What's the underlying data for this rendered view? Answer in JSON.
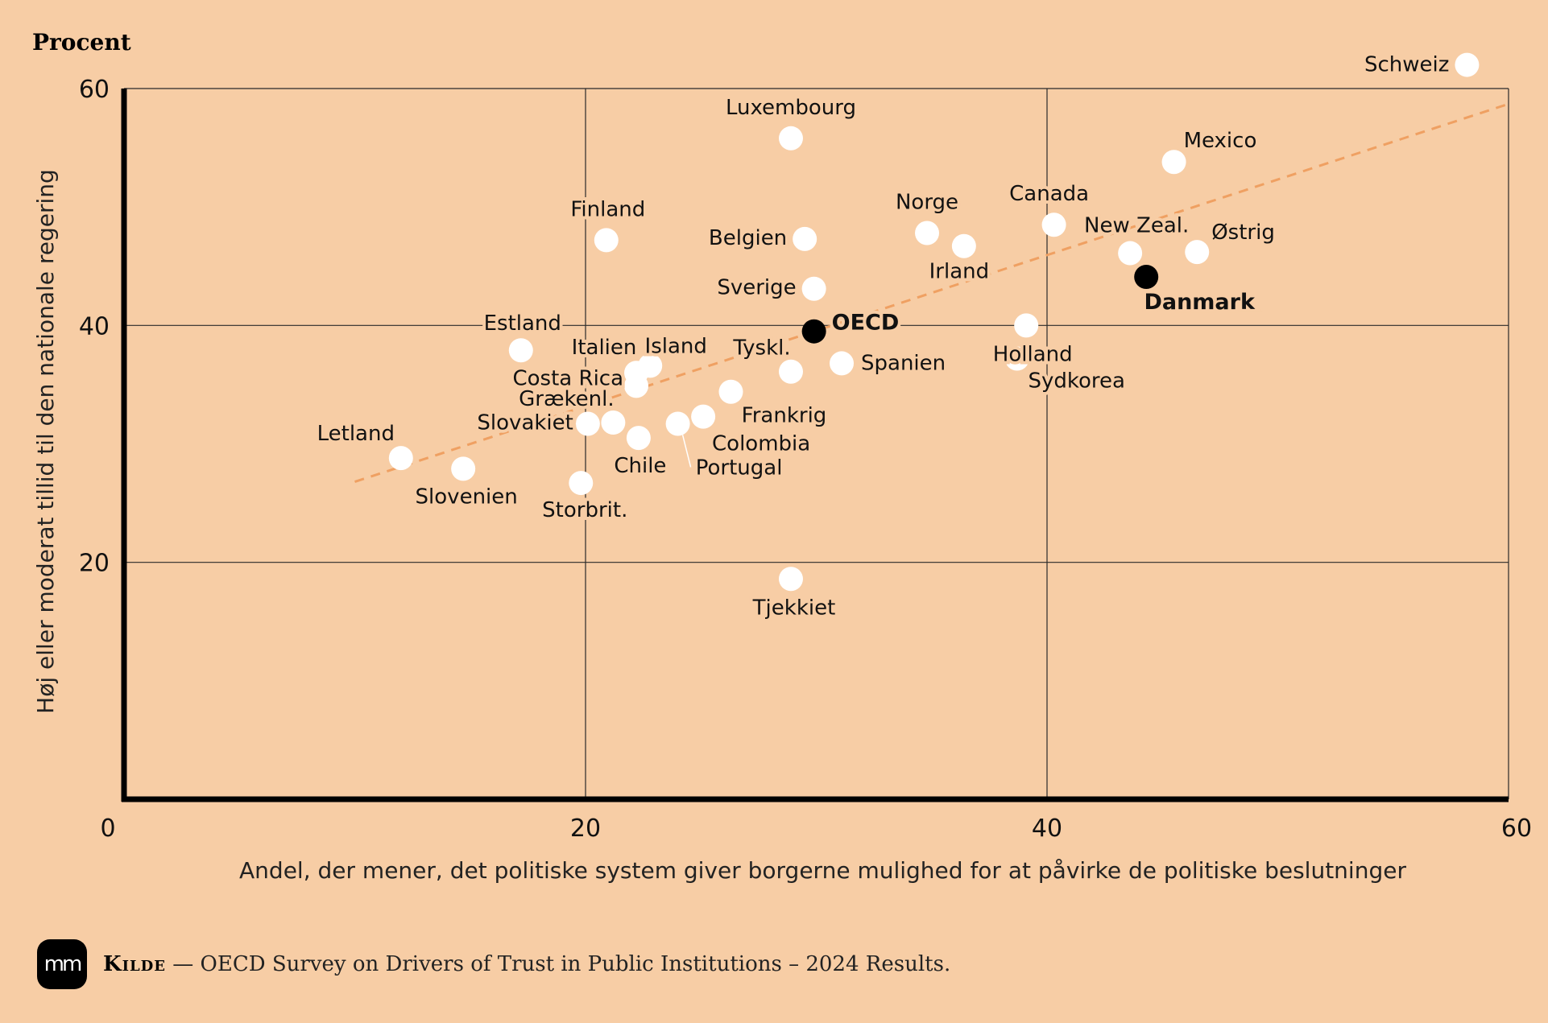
{
  "chart_data": {
    "type": "scatter",
    "unit_label": "Procent",
    "xlabel": "Andel, der mener, det politiske system giver borgerne mulighed for at påvirke de politiske beslutninger",
    "ylabel": "Høj eller moderat tillid til den nationale regering",
    "xlim": [
      0,
      60
    ],
    "ylim": [
      0,
      60
    ],
    "x_ticks": [
      "0",
      "20",
      "40",
      "60"
    ],
    "y_ticks": [
      "20",
      "40",
      "60"
    ],
    "grid": true,
    "trendline": {
      "x": [
        10,
        60
      ],
      "y": [
        26.8,
        58.7
      ],
      "style": "dashed",
      "color": "#EFA062"
    },
    "colors": {
      "background": "#F7CDA5",
      "point": "#FFFFFF",
      "highlight": "#000000",
      "trend": "#EFA062"
    },
    "points": [
      {
        "label": "Schweiz",
        "x": 58.2,
        "y": 62.0
      },
      {
        "label": "Mexico",
        "x": 45.5,
        "y": 53.8
      },
      {
        "label": "Luxembourg",
        "x": 28.9,
        "y": 55.8
      },
      {
        "label": "Finland",
        "x": 20.9,
        "y": 47.2
      },
      {
        "label": "Belgien",
        "x": 29.5,
        "y": 47.3
      },
      {
        "label": "Norge",
        "x": 34.8,
        "y": 47.8
      },
      {
        "label": "Canada",
        "x": 40.3,
        "y": 48.5
      },
      {
        "label": "New Zeal.",
        "x": 43.6,
        "y": 46.1
      },
      {
        "label": "Østrig",
        "x": 46.5,
        "y": 46.2
      },
      {
        "label": "Irland",
        "x": 36.4,
        "y": 46.7
      },
      {
        "label": "Holland",
        "x": 39.1,
        "y": 40.0
      },
      {
        "label": "Danmark",
        "x": 44.3,
        "y": 44.1,
        "highlight": true
      },
      {
        "label": "Sverige",
        "x": 29.9,
        "y": 43.1
      },
      {
        "label": "OECD",
        "x": 29.9,
        "y": 39.5,
        "highlight": true
      },
      {
        "label": "Estland",
        "x": 17.2,
        "y": 37.9
      },
      {
        "label": "Island",
        "x": 22.8,
        "y": 36.6
      },
      {
        "label": "Italien",
        "x": 22.2,
        "y": 36.0
      },
      {
        "label": "Costa Rica",
        "x": 22.2,
        "y": 34.9
      },
      {
        "label": "Tyskl.",
        "x": 28.9,
        "y": 36.1
      },
      {
        "label": "Spanien",
        "x": 31.1,
        "y": 36.8
      },
      {
        "label": "Sydkorea",
        "x": 38.7,
        "y": 37.2
      },
      {
        "label": "Grækenl.",
        "x": 21.2,
        "y": 31.8
      },
      {
        "label": "Slovakiet",
        "x": 20.1,
        "y": 31.7
      },
      {
        "label": "Frankrig",
        "x": 26.3,
        "y": 34.4
      },
      {
        "label": "Colombia",
        "x": 25.1,
        "y": 32.3
      },
      {
        "label": "Portugal",
        "x": 24.0,
        "y": 31.7
      },
      {
        "label": "Chile",
        "x": 22.3,
        "y": 30.5
      },
      {
        "label": "Letland",
        "x": 12.0,
        "y": 28.8
      },
      {
        "label": "Slovenien",
        "x": 14.7,
        "y": 27.9
      },
      {
        "label": "Storbrit.",
        "x": 19.8,
        "y": 26.7
      },
      {
        "label": "Tjekkiet",
        "x": 28.9,
        "y": 18.6
      }
    ]
  },
  "footer": {
    "logo_text": "mm",
    "source_label": "Kilde",
    "source_text": "— OECD Survey on Drivers of Trust in Public Institutions – 2024 Results."
  }
}
